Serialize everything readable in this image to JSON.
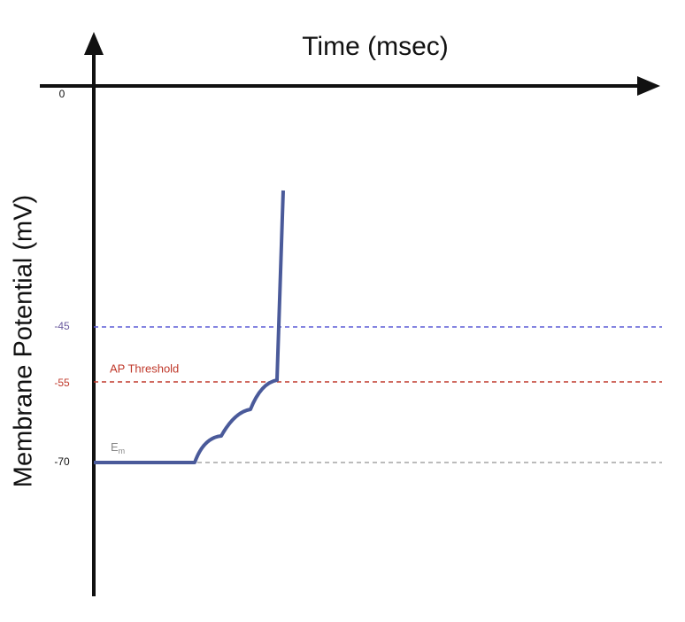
{
  "header": {
    "title": "Time (msec)",
    "y_label": "Membrane Potential  (mV)"
  },
  "levels": [
    {
      "label": "0"
    },
    {
      "label": "-45"
    },
    {
      "label": "-55",
      "name": "AP Threshold"
    },
    {
      "label": "-70",
      "name": "E",
      "sub": "m"
    }
  ]
}
